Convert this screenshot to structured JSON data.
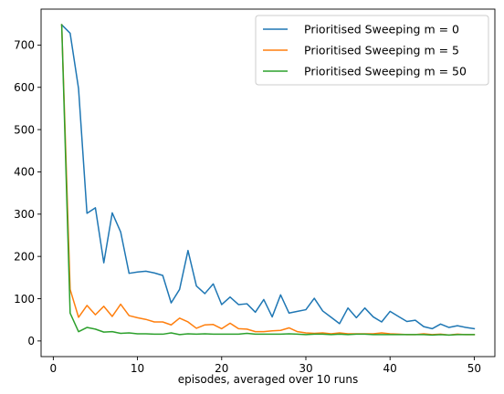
{
  "chart_data": {
    "type": "line",
    "xlabel": "episodes, averaged over 10 runs",
    "ylabel": "",
    "xlim": [
      -1.45,
      52.45
    ],
    "ylim": [
      -37,
      785
    ],
    "xticks": [
      0,
      10,
      20,
      30,
      40,
      50
    ],
    "yticks": [
      0,
      100,
      200,
      300,
      400,
      500,
      600,
      700
    ],
    "legend_position": "top-right",
    "grid": false,
    "x": [
      1,
      2,
      3,
      4,
      5,
      6,
      7,
      8,
      9,
      10,
      11,
      12,
      13,
      14,
      15,
      16,
      17,
      18,
      19,
      20,
      21,
      22,
      23,
      24,
      25,
      26,
      27,
      28,
      29,
      30,
      31,
      32,
      33,
      34,
      35,
      36,
      37,
      38,
      39,
      40,
      41,
      42,
      43,
      44,
      45,
      46,
      47,
      48,
      49,
      50
    ],
    "series": [
      {
        "name": "Prioritised Sweeping m = 0",
        "color": "#1f77b4",
        "values": [
          748,
          728,
          597,
          302,
          315,
          185,
          303,
          258,
          160,
          163,
          165,
          161,
          155,
          90,
          122,
          214,
          130,
          112,
          135,
          86,
          104,
          86,
          88,
          68,
          98,
          57,
          109,
          66,
          70,
          74,
          101,
          71,
          56,
          41,
          78,
          55,
          78,
          57,
          45,
          70,
          58,
          46,
          49,
          34,
          29,
          40,
          32,
          36,
          32,
          29
        ]
      },
      {
        "name": "Prioritised Sweeping m = 5",
        "color": "#ff7f0e",
        "values": [
          748,
          122,
          56,
          84,
          62,
          82,
          58,
          87,
          60,
          55,
          51,
          45,
          45,
          38,
          54,
          45,
          30,
          38,
          39,
          29,
          42,
          29,
          28,
          22,
          22,
          24,
          25,
          31,
          22,
          19,
          18,
          19,
          17,
          19,
          17,
          17,
          17,
          17,
          19,
          17,
          16,
          15,
          15,
          17,
          15,
          16,
          14,
          16,
          15,
          15
        ]
      },
      {
        "name": "Prioritised Sweeping m = 50",
        "color": "#2ca02c",
        "values": [
          748,
          66,
          22,
          32,
          28,
          21,
          22,
          18,
          19,
          17,
          17,
          16,
          16,
          19,
          15,
          17,
          16,
          17,
          16,
          16,
          16,
          16,
          18,
          16,
          16,
          16,
          16,
          17,
          16,
          15,
          16,
          16,
          15,
          16,
          15,
          16,
          16,
          15,
          15,
          15,
          15,
          15,
          15,
          15,
          14,
          15,
          14,
          15,
          15,
          15
        ]
      }
    ]
  }
}
